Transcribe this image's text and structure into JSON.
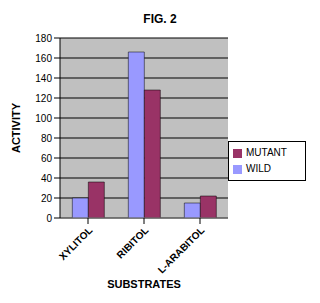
{
  "chart_data": {
    "type": "bar",
    "title": "FIG. 2",
    "x_label": "SUBSTRATES",
    "y_label": "ACTIVITY",
    "categories": [
      "XYLITOL",
      "RIBITOL",
      "L-ARABITOL"
    ],
    "series": [
      {
        "name": "WILD",
        "color": "#9999ff",
        "values": [
          20,
          166,
          15
        ]
      },
      {
        "name": "MUTANT",
        "color": "#993366",
        "values": [
          36,
          128,
          22
        ]
      }
    ],
    "ylim": [
      0,
      180
    ],
    "yticks": [
      0,
      20,
      40,
      60,
      80,
      100,
      120,
      140,
      160,
      180
    ],
    "grid": true,
    "legend": "right"
  }
}
